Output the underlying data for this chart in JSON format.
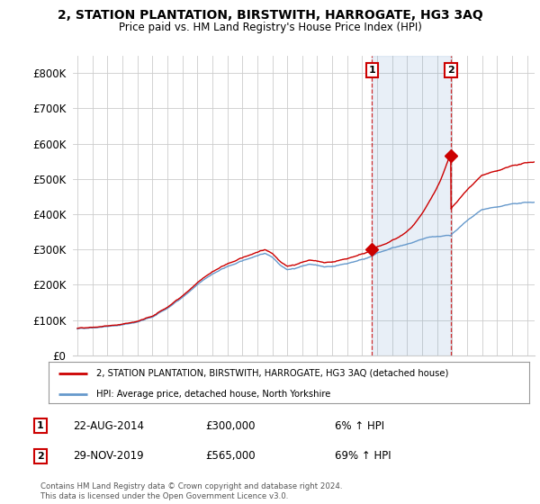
{
  "title": "2, STATION PLANTATION, BIRSTWITH, HARROGATE, HG3 3AQ",
  "subtitle": "Price paid vs. HM Land Registry's House Price Index (HPI)",
  "legend_line1": "2, STATION PLANTATION, BIRSTWITH, HARROGATE, HG3 3AQ (detached house)",
  "legend_line2": "HPI: Average price, detached house, North Yorkshire",
  "annotation1_date": "22-AUG-2014",
  "annotation1_price": "£300,000",
  "annotation1_hpi": "6% ↑ HPI",
  "annotation2_date": "29-NOV-2019",
  "annotation2_price": "£565,000",
  "annotation2_hpi": "69% ↑ HPI",
  "footer": "Contains HM Land Registry data © Crown copyright and database right 2024.\nThis data is licensed under the Open Government Licence v3.0.",
  "red_color": "#cc0000",
  "blue_color": "#6699cc",
  "blue_fill": "#ddeeff",
  "background_color": "#ffffff",
  "grid_color": "#cccccc",
  "ylim": [
    0,
    850000
  ],
  "yticks": [
    0,
    100000,
    200000,
    300000,
    400000,
    500000,
    600000,
    700000,
    800000
  ],
  "sale1_x": 2014.646,
  "sale1_y": 300000,
  "sale2_x": 2019.915,
  "sale2_y": 565000,
  "xmin": 1995,
  "xmax": 2025.5
}
